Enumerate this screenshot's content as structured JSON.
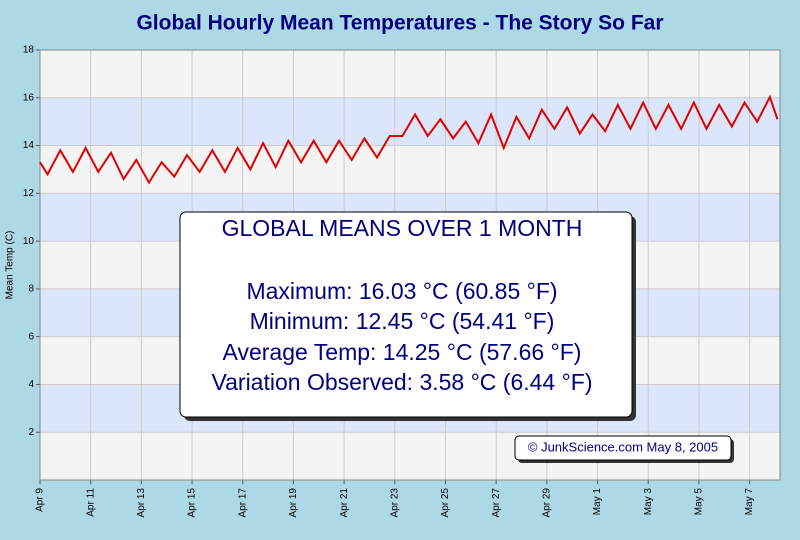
{
  "chart_data": {
    "type": "line",
    "title": "Global Hourly Mean Temperatures - The Story So Far",
    "y_label": "Mean Temp (C)",
    "x": [
      0,
      0.3,
      0.8,
      1.3,
      1.8,
      2.3,
      2.8,
      3.3,
      3.8,
      4.3,
      4.8,
      5.3,
      5.8,
      6.3,
      6.8,
      7.3,
      7.8,
      8.3,
      8.8,
      9.3,
      9.8,
      10.3,
      10.8,
      11.3,
      11.8,
      12.3,
      12.8,
      13.3,
      13.8,
      14.3,
      14.8,
      15.3,
      15.8,
      16.3,
      16.8,
      17.3,
      17.8,
      18.3,
      18.8,
      19.3,
      19.8,
      20.3,
      20.8,
      21.3,
      21.8,
      22.3,
      22.8,
      23.3,
      23.8,
      24.3,
      24.8,
      25.3,
      25.8,
      26.3,
      26.8,
      27.3,
      27.8,
      28.3,
      28.8,
      29.1
    ],
    "series": [
      {
        "name": "Mean Temp",
        "color": "#e00000",
        "values": [
          13.3,
          12.8,
          13.8,
          12.9,
          13.9,
          12.9,
          13.7,
          12.6,
          13.4,
          12.45,
          13.3,
          12.7,
          13.6,
          12.9,
          13.8,
          12.9,
          13.9,
          13.0,
          14.1,
          13.1,
          14.2,
          13.3,
          14.2,
          13.3,
          14.2,
          13.4,
          14.3,
          13.5,
          14.4,
          14.4,
          15.3,
          14.4,
          15.1,
          14.3,
          15.0,
          14.1,
          15.3,
          13.9,
          15.2,
          14.3,
          15.5,
          14.7,
          15.6,
          14.5,
          15.3,
          14.6,
          15.7,
          14.7,
          15.8,
          14.7,
          15.7,
          14.7,
          15.8,
          14.7,
          15.7,
          14.8,
          15.8,
          15.0,
          16.03,
          15.1
        ]
      }
    ],
    "xlim": [
      0,
      29.2
    ],
    "xticks": [
      {
        "value": 0,
        "label": "Apr 9"
      },
      {
        "value": 2,
        "label": "Apr 11"
      },
      {
        "value": 4,
        "label": "Apr 13"
      },
      {
        "value": 6,
        "label": "Apr 15"
      },
      {
        "value": 8,
        "label": "Apr 17"
      },
      {
        "value": 10,
        "label": "Apr 19"
      },
      {
        "value": 12,
        "label": "Apr 21"
      },
      {
        "value": 14,
        "label": "Apr 23"
      },
      {
        "value": 16,
        "label": "Apr 25"
      },
      {
        "value": 18,
        "label": "Apr 27"
      },
      {
        "value": 20,
        "label": "Apr 29"
      },
      {
        "value": 22,
        "label": "May 1"
      },
      {
        "value": 24,
        "label": "May 3"
      },
      {
        "value": 26,
        "label": "May 5"
      },
      {
        "value": 28,
        "label": "May 7"
      }
    ],
    "ylim": [
      0,
      18
    ],
    "yticks": [
      2,
      4,
      6,
      8,
      10,
      12,
      14,
      16,
      18
    ],
    "grid": true,
    "annotations": [
      "GLOBAL MEANS OVER 1 MONTH",
      "Maximum: 16.03 °C (60.85 °F)",
      "Minimum: 12.45 °C (54.41 °F)",
      "Average Temp: 14.25 °C (57.66 °F)",
      "Variation Observed: 3.58 °C (6.44 °F)"
    ],
    "credit": "© JunkScience.com May 8, 2005"
  }
}
